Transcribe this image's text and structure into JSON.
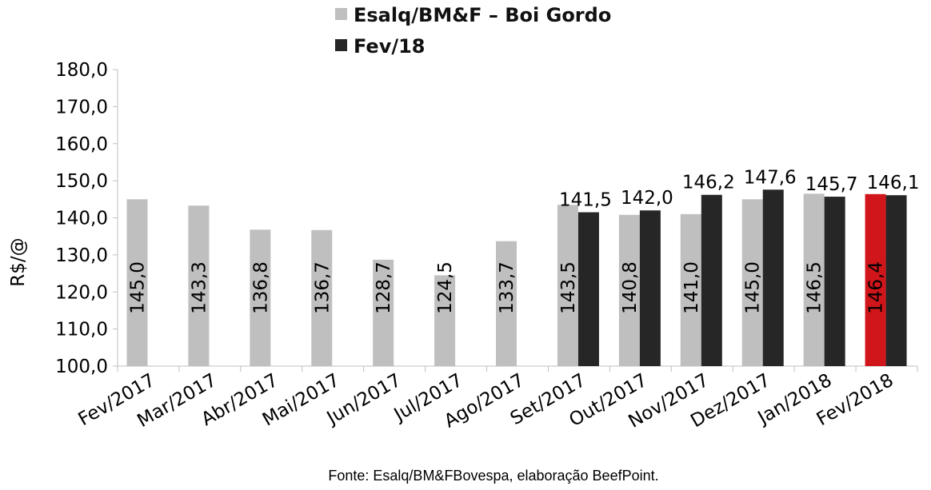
{
  "chart_data": {
    "type": "bar",
    "title": "",
    "xlabel": "",
    "ylabel": "R$/@",
    "ylim": [
      100,
      180
    ],
    "yticks": [
      "100,0",
      "110,0",
      "120,0",
      "130,0",
      "140,0",
      "150,0",
      "160,0",
      "170,0",
      "180,0"
    ],
    "grid": false,
    "legend_position": "top",
    "categories": [
      "Fev/2017",
      "Mar/2017",
      "Abr/2017",
      "Mai/2017",
      "Jun/2017",
      "Jul/2017",
      "Ago/2017",
      "Set/2017",
      "Out/2017",
      "Nov/2017",
      "Dez/2017",
      "Jan/2018",
      "Fev/2018"
    ],
    "series": [
      {
        "name": "Esalq/BM&F – Boi Gordo",
        "color": "#bfbfbf",
        "values": [
          145.0,
          143.3,
          136.8,
          136.7,
          128.7,
          124.5,
          133.7,
          143.5,
          140.8,
          141.0,
          145.0,
          146.5,
          146.4
        ],
        "labels": [
          "145,0",
          "143,3",
          "136,8",
          "136,7",
          "128,7",
          "124,5",
          "133,7",
          "143,5",
          "140,8",
          "141,0",
          "145,0",
          "146,5",
          "146,4"
        ],
        "highlight": {
          "index": 12,
          "color": "#d0161a"
        }
      },
      {
        "name": "Fev/18",
        "color": "#262626",
        "values": [
          null,
          null,
          null,
          null,
          null,
          null,
          null,
          141.5,
          142.0,
          146.2,
          147.6,
          145.7,
          146.1
        ],
        "labels": [
          "",
          "",
          "",
          "",
          "",
          "",
          "",
          "141,5",
          "142,0",
          "146,2",
          "147,6",
          "145,7",
          "146,1"
        ]
      }
    ],
    "source": "Fonte: Esalq/BM&FBovespa, elaboração BeefPoint."
  }
}
